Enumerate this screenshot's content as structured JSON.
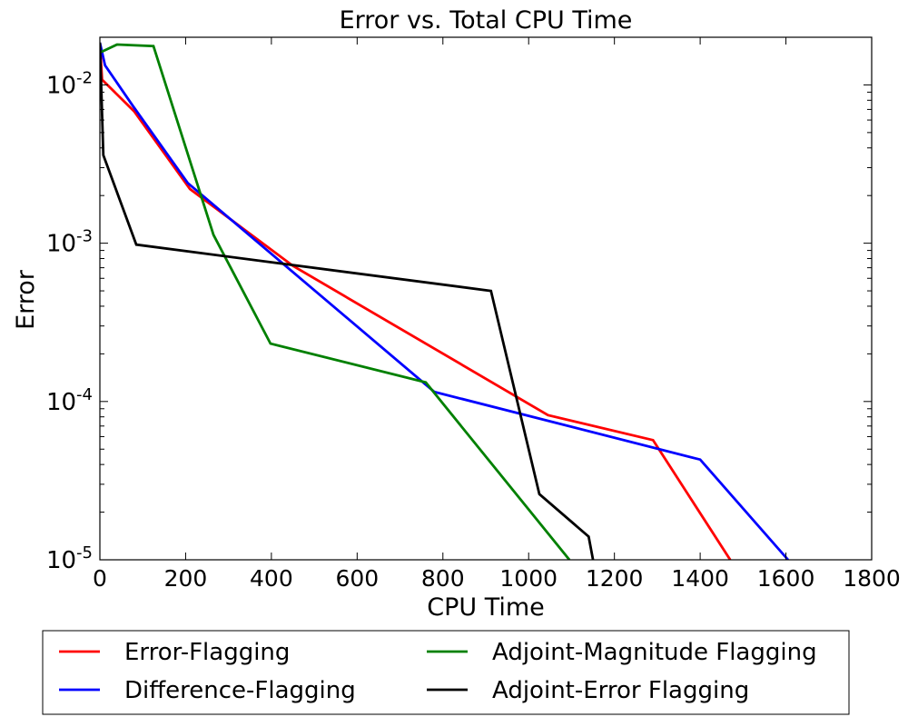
{
  "chart_data": {
    "type": "line",
    "title": "Error vs. Total CPU Time",
    "xlabel": "CPU Time",
    "ylabel": "Error",
    "xlim": [
      0,
      1800
    ],
    "ylim": [
      1e-05,
      0.02
    ],
    "yscale": "log",
    "xticks": [
      0,
      200,
      400,
      600,
      800,
      1000,
      1200,
      1400,
      1600,
      1800
    ],
    "xtick_labels": [
      "0",
      "200",
      "400",
      "600",
      "800",
      "1000",
      "1200",
      "1400",
      "1600",
      "1800"
    ],
    "yticks": [
      {
        "value": 0.01,
        "base": "10",
        "exp": "-2"
      },
      {
        "value": 0.001,
        "base": "10",
        "exp": "-3"
      },
      {
        "value": 0.0001,
        "base": "10",
        "exp": "-4"
      },
      {
        "value": 1e-05,
        "base": "10",
        "exp": "-5"
      }
    ],
    "grid": false,
    "legend_position": "below plot, two columns",
    "series": [
      {
        "name": "Error-Flagging",
        "color": "#ff0000",
        "x": [
          0,
          5,
          80,
          210,
          450,
          1045,
          1290,
          1470
        ],
        "y": [
          0.0185,
          0.0108,
          0.0068,
          0.0022,
          0.00072,
          8.2e-05,
          5.7e-05,
          1e-05
        ]
      },
      {
        "name": "Difference-Flagging",
        "color": "#0000ff",
        "x": [
          0,
          12,
          75,
          205,
          780,
          1400,
          1605
        ],
        "y": [
          0.0185,
          0.0133,
          0.0075,
          0.0024,
          0.000115,
          4.3e-05,
          1e-05
        ]
      },
      {
        "name": "Adjoint-Magnitude Flagging",
        "color": "#008000",
        "x": [
          0,
          40,
          125,
          265,
          398,
          760,
          1095
        ],
        "y": [
          0.016,
          0.018,
          0.0176,
          0.00113,
          0.000232,
          0.000132,
          1e-05
        ]
      },
      {
        "name": "Adjoint-Error Flagging",
        "color": "#000000",
        "x": [
          0,
          8,
          85,
          912,
          1025,
          1140,
          1150
        ],
        "y": [
          0.0185,
          0.0036,
          0.00098,
          0.0005,
          2.6e-05,
          1.4e-05,
          1e-05
        ]
      }
    ]
  }
}
